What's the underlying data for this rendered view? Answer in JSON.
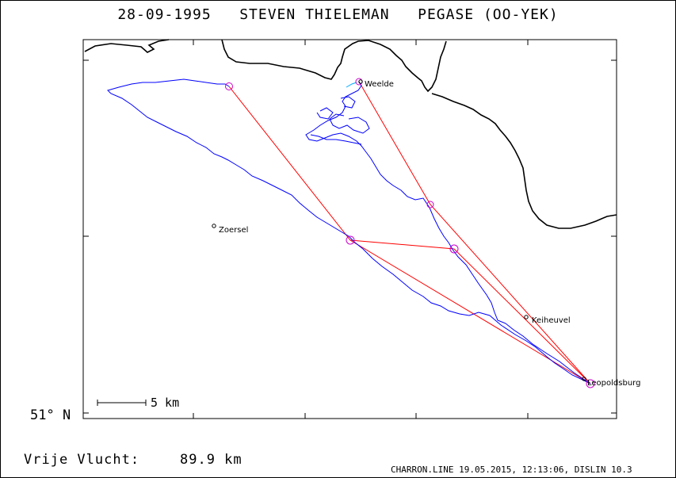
{
  "title": "28-09-1995   STEVEN THIELEMAN   PEGASE (OO-YEK)",
  "map": {
    "latitude_label": "51° N",
    "places": [
      {
        "name": "Weelde"
      },
      {
        "name": "Zoersel"
      },
      {
        "name": "Keiheuvel"
      },
      {
        "name": "Leopoldsburg"
      }
    ],
    "scale_bar_label": "5 km",
    "colors": {
      "track": "#0000ff",
      "task": "#ff0000",
      "turnpoint": "#cc00cc",
      "border": "#000000"
    }
  },
  "flight": {
    "label": "Vrije Vlucht:",
    "distance": "89.9 km"
  },
  "footer": "CHARRON.LINE 19.05.2015, 12:13:06, DISLIN 10.3"
}
